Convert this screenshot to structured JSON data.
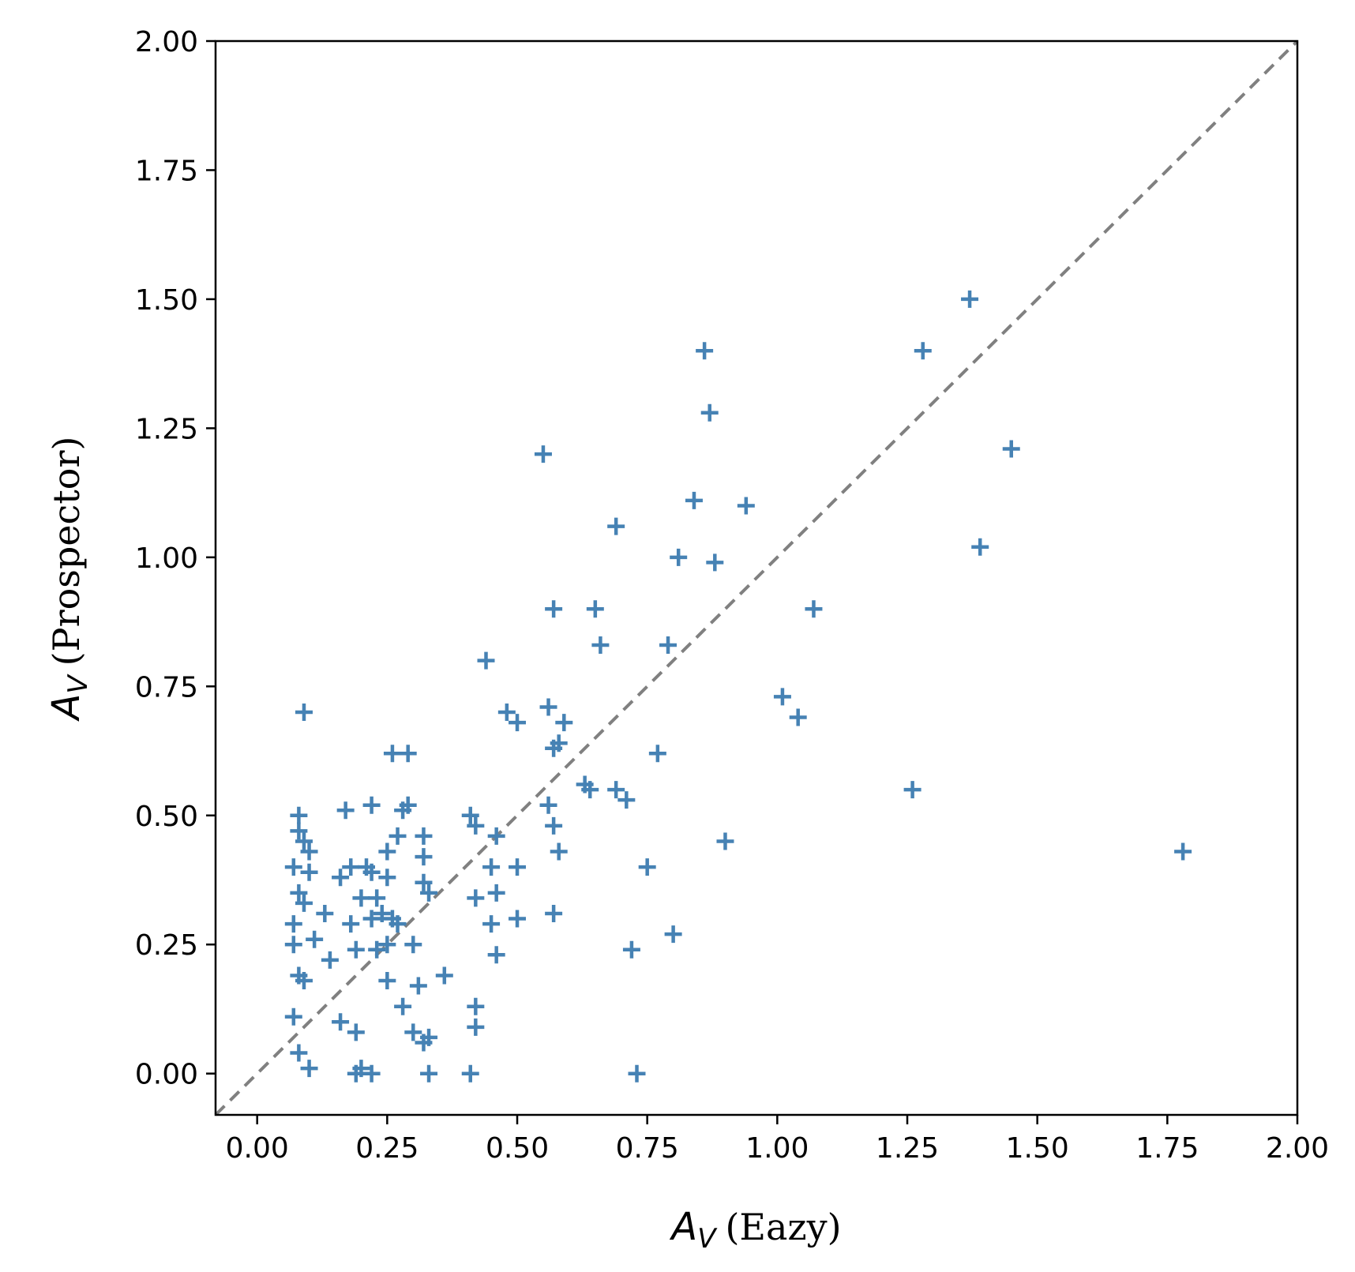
{
  "chart_data": {
    "type": "scatter",
    "xlabel": {
      "symbol": "A",
      "subscript": "V",
      "text": "(Eazy)"
    },
    "ylabel": {
      "symbol": "A",
      "subscript": "V",
      "text": "(Prospector)"
    },
    "xlim": [
      -0.08,
      2.0
    ],
    "ylim": [
      -0.08,
      2.0
    ],
    "xticks": [
      "0.00",
      "0.25",
      "0.50",
      "0.75",
      "1.00",
      "1.25",
      "1.50",
      "1.75",
      "2.00"
    ],
    "yticks": [
      "0.00",
      "0.25",
      "0.50",
      "0.75",
      "1.00",
      "1.25",
      "1.50",
      "1.75",
      "2.00"
    ],
    "grid": false,
    "reference_line": {
      "from": [
        -0.08,
        -0.08
      ],
      "to": [
        2.0,
        2.0
      ],
      "color": "#808080",
      "style": "dashed"
    },
    "marker": "plus",
    "marker_color": "#4682B4",
    "points": [
      [
        1.37,
        1.5
      ],
      [
        1.28,
        1.4
      ],
      [
        1.45,
        1.21
      ],
      [
        1.39,
        1.02
      ],
      [
        1.07,
        0.9
      ],
      [
        1.01,
        0.73
      ],
      [
        1.04,
        0.69
      ],
      [
        1.26,
        0.55
      ],
      [
        1.78,
        0.43
      ],
      [
        0.86,
        1.4
      ],
      [
        0.87,
        1.28
      ],
      [
        0.84,
        1.11
      ],
      [
        0.94,
        1.1
      ],
      [
        0.81,
        1.0
      ],
      [
        0.88,
        0.99
      ],
      [
        0.79,
        0.83
      ],
      [
        0.77,
        0.62
      ],
      [
        0.9,
        0.45
      ],
      [
        0.75,
        0.4
      ],
      [
        0.8,
        0.27
      ],
      [
        0.72,
        0.24
      ],
      [
        0.73,
        0.0
      ],
      [
        0.55,
        1.2
      ],
      [
        0.69,
        1.06
      ],
      [
        0.57,
        0.9
      ],
      [
        0.65,
        0.9
      ],
      [
        0.66,
        0.83
      ],
      [
        0.44,
        0.8
      ],
      [
        0.56,
        0.71
      ],
      [
        0.59,
        0.68
      ],
      [
        0.48,
        0.7
      ],
      [
        0.5,
        0.68
      ],
      [
        0.57,
        0.63
      ],
      [
        0.58,
        0.64
      ],
      [
        0.63,
        0.56
      ],
      [
        0.64,
        0.55
      ],
      [
        0.69,
        0.55
      ],
      [
        0.71,
        0.53
      ],
      [
        0.56,
        0.52
      ],
      [
        0.57,
        0.48
      ],
      [
        0.58,
        0.43
      ],
      [
        0.57,
        0.31
      ],
      [
        0.5,
        0.4
      ],
      [
        0.46,
        0.46
      ],
      [
        0.45,
        0.4
      ],
      [
        0.46,
        0.35
      ],
      [
        0.45,
        0.29
      ],
      [
        0.5,
        0.3
      ],
      [
        0.46,
        0.23
      ],
      [
        0.41,
        0.5
      ],
      [
        0.42,
        0.48
      ],
      [
        0.42,
        0.34
      ],
      [
        0.36,
        0.19
      ],
      [
        0.42,
        0.13
      ],
      [
        0.42,
        0.09
      ],
      [
        0.41,
        0.0
      ],
      [
        0.09,
        0.7
      ],
      [
        0.26,
        0.62
      ],
      [
        0.29,
        0.62
      ],
      [
        0.29,
        0.52
      ],
      [
        0.28,
        0.51
      ],
      [
        0.22,
        0.52
      ],
      [
        0.17,
        0.51
      ],
      [
        0.08,
        0.5
      ],
      [
        0.08,
        0.47
      ],
      [
        0.09,
        0.45
      ],
      [
        0.27,
        0.46
      ],
      [
        0.32,
        0.46
      ],
      [
        0.32,
        0.42
      ],
      [
        0.25,
        0.43
      ],
      [
        0.1,
        0.43
      ],
      [
        0.07,
        0.4
      ],
      [
        0.1,
        0.39
      ],
      [
        0.18,
        0.4
      ],
      [
        0.21,
        0.4
      ],
      [
        0.22,
        0.39
      ],
      [
        0.16,
        0.38
      ],
      [
        0.25,
        0.38
      ],
      [
        0.23,
        0.34
      ],
      [
        0.2,
        0.34
      ],
      [
        0.08,
        0.35
      ],
      [
        0.09,
        0.33
      ],
      [
        0.13,
        0.31
      ],
      [
        0.32,
        0.37
      ],
      [
        0.33,
        0.35
      ],
      [
        0.24,
        0.31
      ],
      [
        0.22,
        0.3
      ],
      [
        0.26,
        0.3
      ],
      [
        0.27,
        0.29
      ],
      [
        0.18,
        0.29
      ],
      [
        0.07,
        0.29
      ],
      [
        0.07,
        0.25
      ],
      [
        0.11,
        0.26
      ],
      [
        0.19,
        0.24
      ],
      [
        0.23,
        0.24
      ],
      [
        0.25,
        0.25
      ],
      [
        0.3,
        0.25
      ],
      [
        0.14,
        0.22
      ],
      [
        0.08,
        0.19
      ],
      [
        0.09,
        0.18
      ],
      [
        0.25,
        0.18
      ],
      [
        0.31,
        0.17
      ],
      [
        0.28,
        0.13
      ],
      [
        0.07,
        0.11
      ],
      [
        0.16,
        0.1
      ],
      [
        0.19,
        0.08
      ],
      [
        0.3,
        0.08
      ],
      [
        0.32,
        0.06
      ],
      [
        0.33,
        0.07
      ],
      [
        0.08,
        0.04
      ],
      [
        0.1,
        0.01
      ],
      [
        0.19,
        0.0
      ],
      [
        0.2,
        0.01
      ],
      [
        0.22,
        0.0
      ],
      [
        0.33,
        0.0
      ]
    ]
  }
}
